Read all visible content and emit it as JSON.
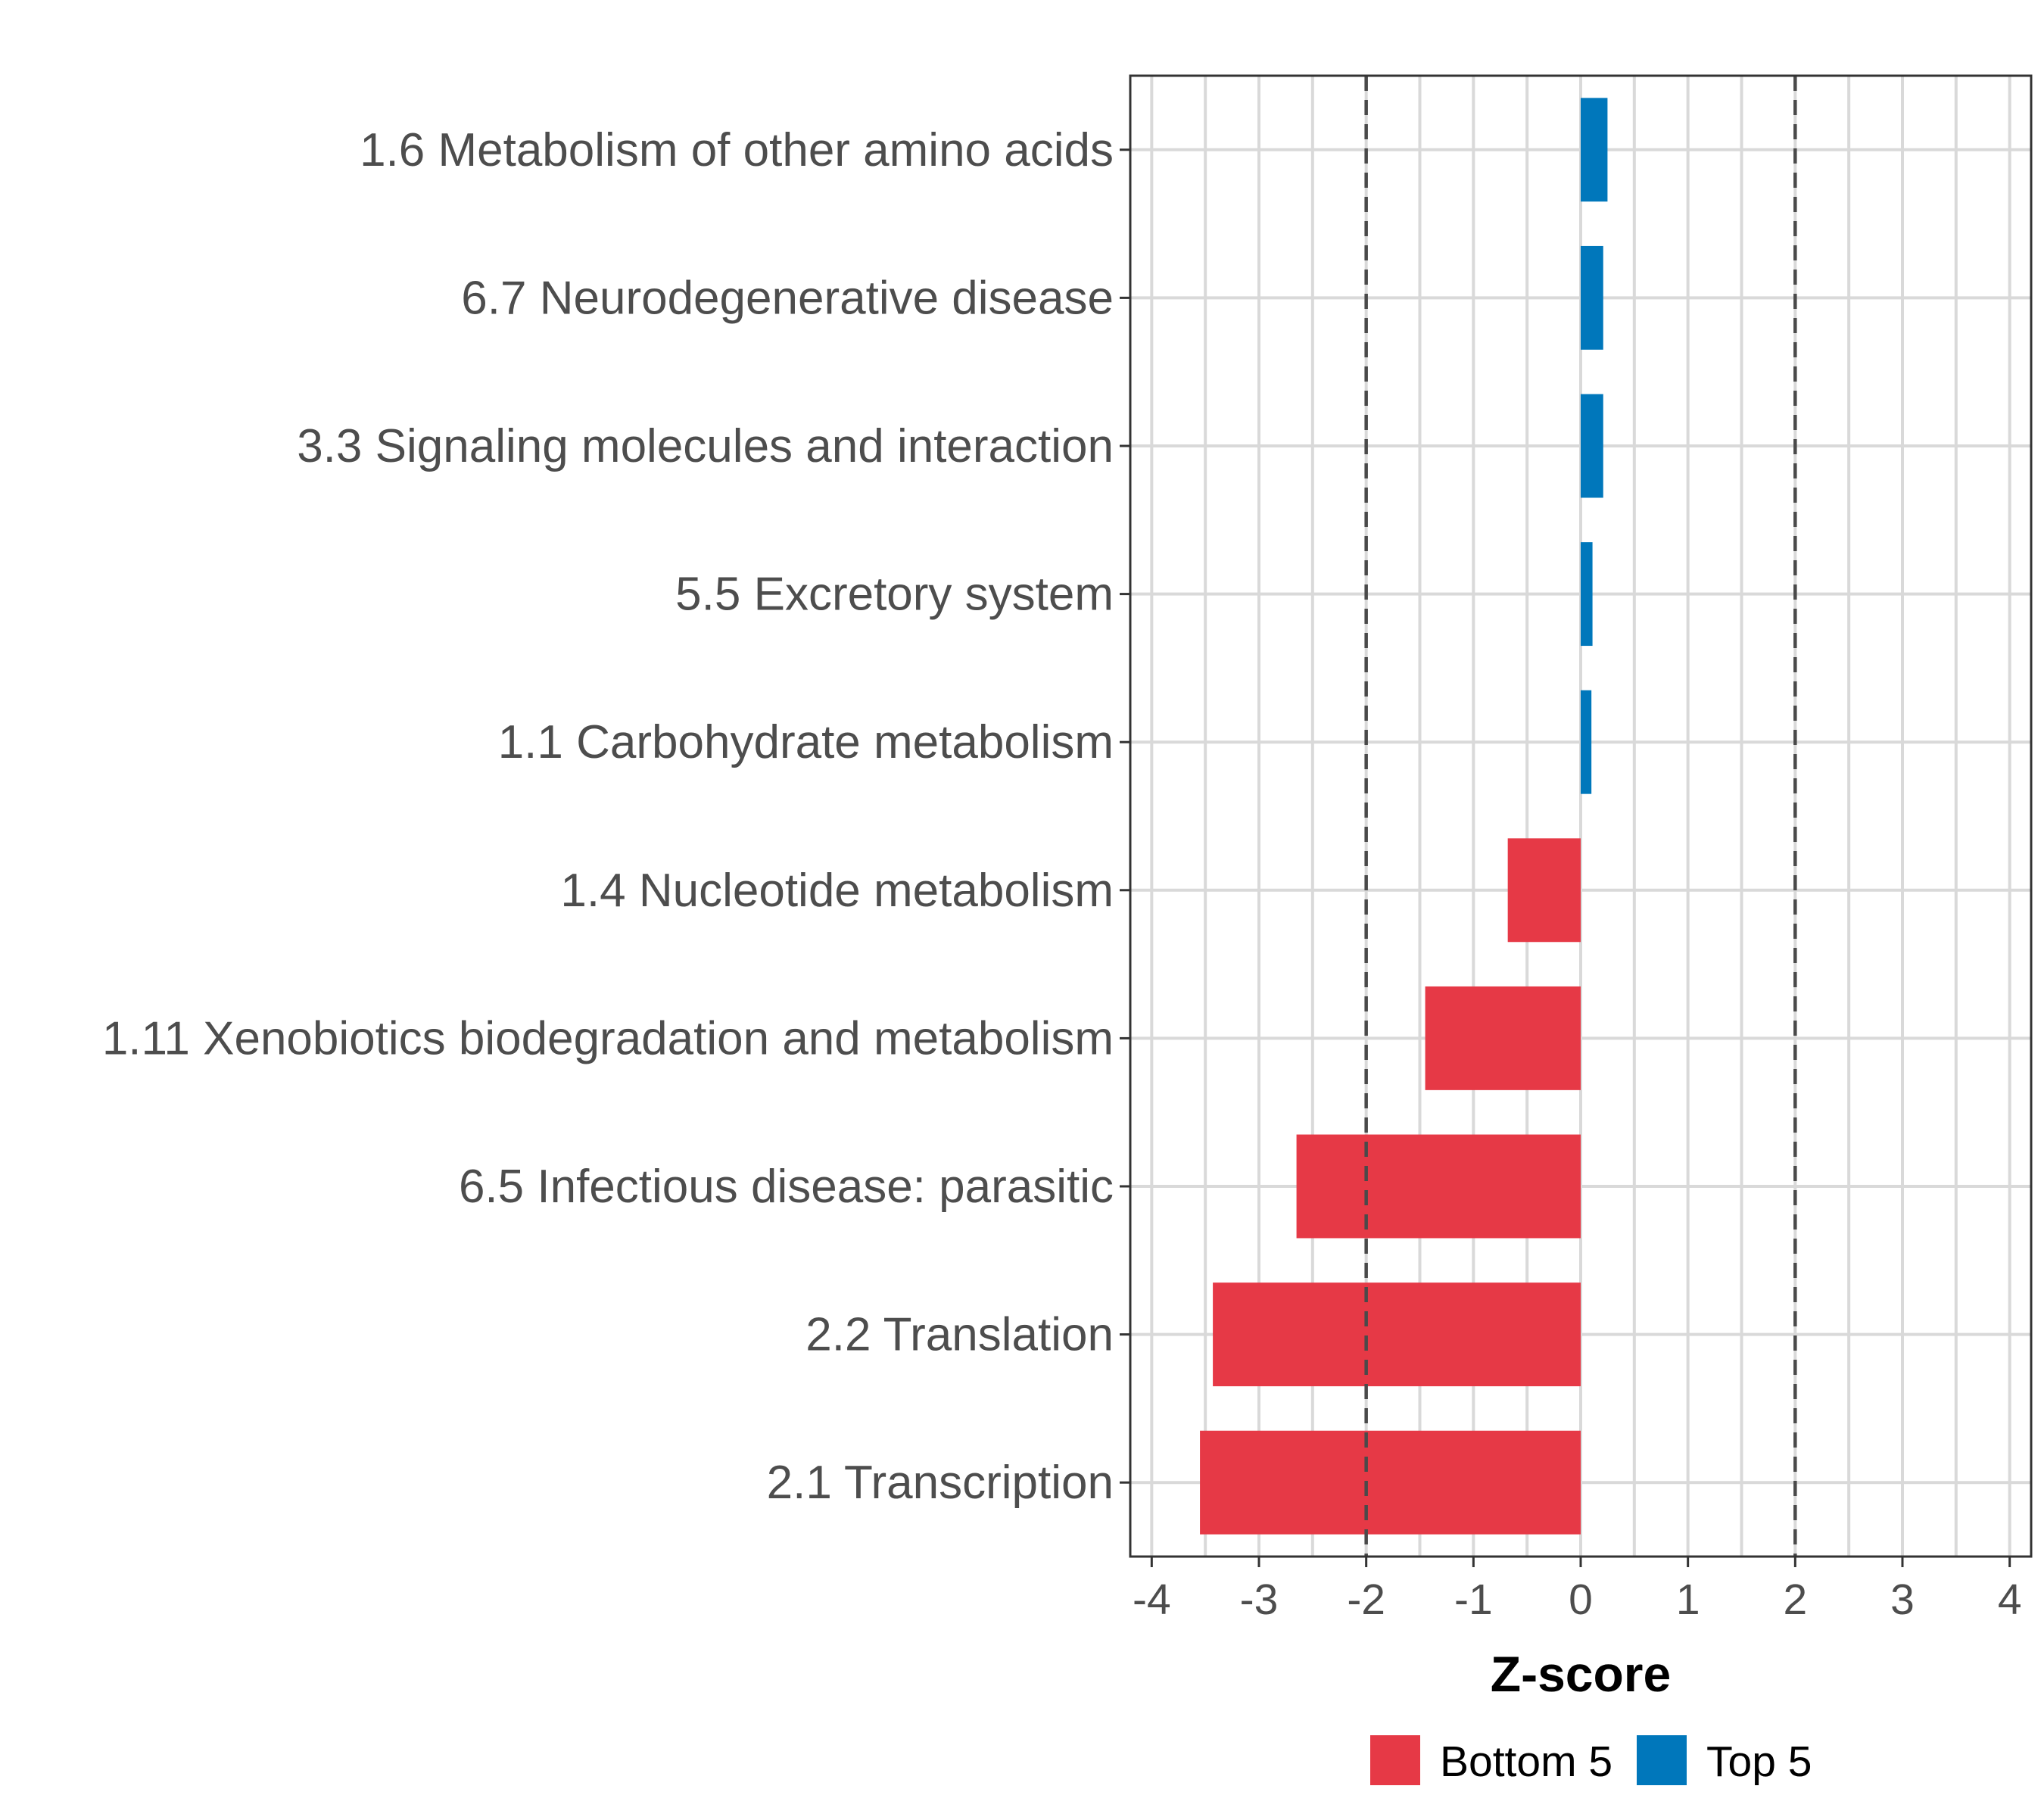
{
  "chart_data": {
    "type": "bar",
    "orientation": "horizontal",
    "xlabel": "Z-score",
    "ylabel": "",
    "xlim": [
      -4.2,
      4.2
    ],
    "x_ticks": [
      -4,
      -3,
      -2,
      -1,
      0,
      1,
      2,
      3,
      4
    ],
    "x_tick_labels": [
      "-4",
      "-3",
      "-2",
      "-1",
      "0",
      "1",
      "2",
      "3",
      "4"
    ],
    "reference_lines": [
      -2,
      2
    ],
    "grid": true,
    "legend_position": "bottom",
    "legend": [
      {
        "name": "Bottom 5",
        "color": "#e63946"
      },
      {
        "name": "Top 5",
        "color": "#0077bb"
      }
    ],
    "categories": [
      "1.6 Metabolism of other amino acids",
      "6.7 Neurodegenerative disease",
      "3.3 Signaling molecules and interaction",
      "5.5 Excretory system",
      "1.1 Carbohydrate metabolism",
      "1.4 Nucleotide metabolism",
      "1.11 Xenobiotics biodegradation and metabolism",
      "6.5 Infectious disease: parasitic",
      "2.2 Translation",
      "2.1 Transcription"
    ],
    "values": [
      0.25,
      0.21,
      0.21,
      0.11,
      0.1,
      -0.68,
      -1.45,
      -2.65,
      -3.43,
      -3.55
    ],
    "groups": [
      "Top 5",
      "Top 5",
      "Top 5",
      "Top 5",
      "Top 5",
      "Bottom 5",
      "Bottom 5",
      "Bottom 5",
      "Bottom 5",
      "Bottom 5"
    ]
  }
}
